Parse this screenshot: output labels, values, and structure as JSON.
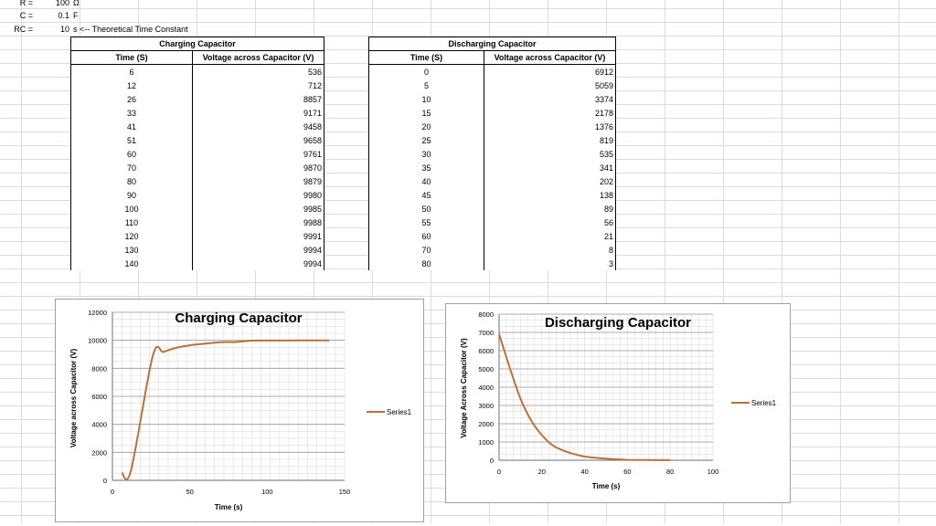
{
  "params": [
    {
      "label": "R =",
      "value": "100",
      "unit": "Ω"
    },
    {
      "label": "C =",
      "value": "0.1",
      "unit": "F"
    },
    {
      "label": "RC =",
      "value": "10",
      "unit": "s <-- Theoretical Time Constant"
    }
  ],
  "charging_table": {
    "title": "Charging Capacitor",
    "headers": [
      "Time (S)",
      "Voltage across Capacitor (V)"
    ],
    "rows": [
      [
        "6",
        "536"
      ],
      [
        "12",
        "712"
      ],
      [
        "26",
        "8857"
      ],
      [
        "33",
        "9171"
      ],
      [
        "41",
        "9458"
      ],
      [
        "51",
        "9658"
      ],
      [
        "60",
        "9761"
      ],
      [
        "70",
        "9870"
      ],
      [
        "80",
        "9879"
      ],
      [
        "90",
        "9980"
      ],
      [
        "100",
        "9985"
      ],
      [
        "110",
        "9988"
      ],
      [
        "120",
        "9991"
      ],
      [
        "130",
        "9994"
      ],
      [
        "140",
        "9994"
      ]
    ]
  },
  "discharging_table": {
    "title": "Discharging Capacitor",
    "headers": [
      "Time (S)",
      "Voltage across Capacitor (V)"
    ],
    "rows": [
      [
        "0",
        "6912"
      ],
      [
        "5",
        "5059"
      ],
      [
        "10",
        "3374"
      ],
      [
        "15",
        "2178"
      ],
      [
        "20",
        "1376"
      ],
      [
        "25",
        "819"
      ],
      [
        "30",
        "535"
      ],
      [
        "35",
        "341"
      ],
      [
        "40",
        "202"
      ],
      [
        "45",
        "138"
      ],
      [
        "50",
        "89"
      ],
      [
        "55",
        "56"
      ],
      [
        "60",
        "21"
      ],
      [
        "70",
        "8"
      ],
      [
        "80",
        "3"
      ]
    ]
  },
  "chart_data": [
    {
      "type": "line",
      "title": "Charging Capacitor",
      "xlabel": "Time (s)",
      "ylabel": "Voltage across Capacitor (V)",
      "xlim": [
        0,
        150
      ],
      "ylim": [
        0,
        12000
      ],
      "xticks": [
        "0",
        "50",
        "100",
        "150"
      ],
      "yticks": [
        "0",
        "2000",
        "4000",
        "6000",
        "8000",
        "10000",
        "12000"
      ],
      "grid": true,
      "legend_position": "right",
      "series": [
        {
          "name": "Series1",
          "color": "#b8733a",
          "x": [
            6,
            12,
            26,
            33,
            41,
            51,
            60,
            70,
            80,
            90,
            100,
            110,
            120,
            130,
            140
          ],
          "y": [
            536,
            712,
            8857,
            9171,
            9458,
            9658,
            9761,
            9870,
            9879,
            9980,
            9985,
            9988,
            9991,
            9994,
            9994
          ]
        }
      ]
    },
    {
      "type": "line",
      "title": "Discharging Capacitor",
      "xlabel": "Time (s)",
      "ylabel": "Voltage Across Capacitor (V)",
      "xlim": [
        0,
        100
      ],
      "ylim": [
        0,
        8000
      ],
      "xticks": [
        "0",
        "20",
        "40",
        "60",
        "80",
        "100"
      ],
      "yticks": [
        "0",
        "1000",
        "2000",
        "3000",
        "4000",
        "5000",
        "6000",
        "7000",
        "8000"
      ],
      "grid": true,
      "legend_position": "right",
      "series": [
        {
          "name": "Series1",
          "color": "#b8733a",
          "x": [
            0,
            5,
            10,
            15,
            20,
            25,
            30,
            35,
            40,
            45,
            50,
            55,
            60,
            70,
            80
          ],
          "y": [
            6912,
            5059,
            3374,
            2178,
            1376,
            819,
            535,
            341,
            202,
            138,
            89,
            56,
            21,
            8,
            3
          ]
        }
      ]
    }
  ]
}
